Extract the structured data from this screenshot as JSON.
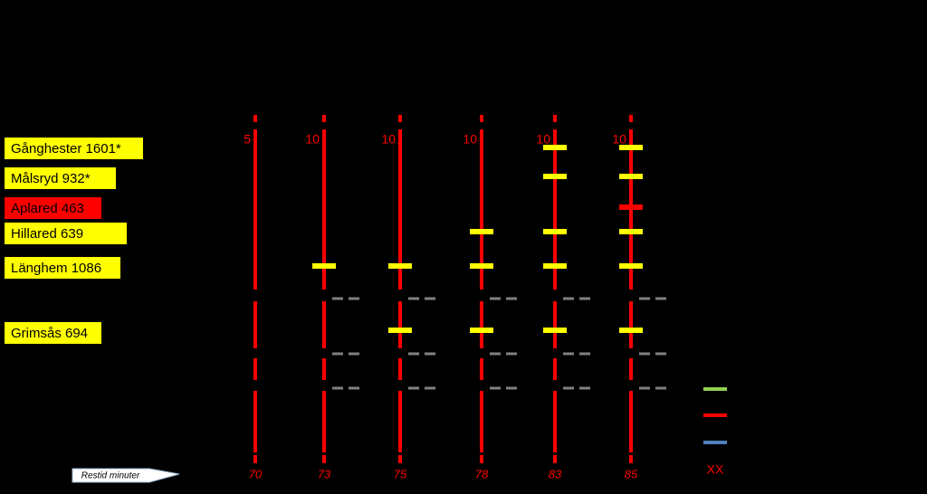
{
  "stations": [
    {
      "label": "Gånghester 1601*"
    },
    {
      "label": "Målsryd 932*"
    },
    {
      "label": "Aplared 463"
    },
    {
      "label": "Hillared 639"
    },
    {
      "label": "Länghem 1086"
    },
    {
      "label": "Grimsås 694"
    }
  ],
  "routes": [
    {
      "frequency": "5",
      "travel_time": "70"
    },
    {
      "frequency": "10",
      "travel_time": "73"
    },
    {
      "frequency": "10",
      "travel_time": "75"
    },
    {
      "frequency": "10",
      "travel_time": "78"
    },
    {
      "frequency": "10",
      "travel_time": "83"
    },
    {
      "frequency": "10",
      "travel_time": "85"
    }
  ],
  "legend": {
    "label": "XX"
  },
  "callout": "Restid minuter"
}
